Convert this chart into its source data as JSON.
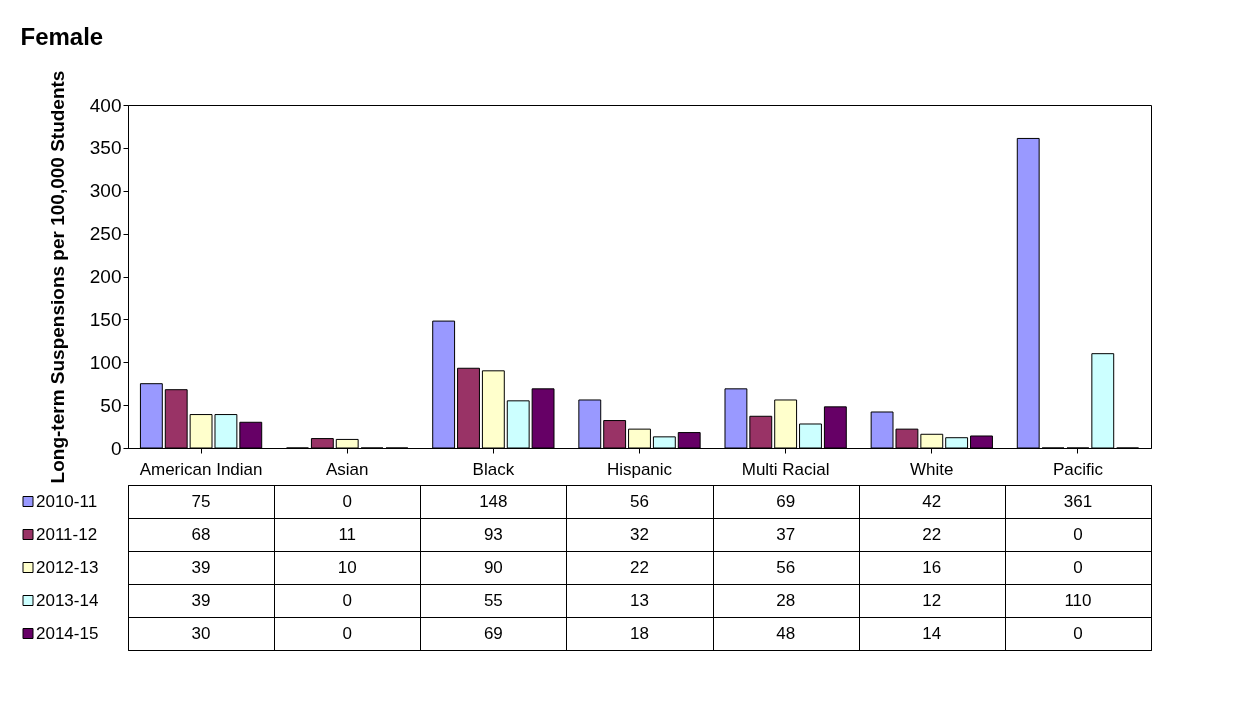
{
  "chart_data": {
    "type": "bar",
    "title": "Female",
    "ylabel": "Long-term Suspensions per 100,000 Students",
    "categories": [
      "American Indian",
      "Asian",
      "Black",
      "Hispanic",
      "Multi Racial",
      "White",
      "Pacific"
    ],
    "series": [
      {
        "name": "2010-11",
        "color": "#9999ff",
        "values": [
          75,
          0,
          148,
          56,
          69,
          42,
          361
        ]
      },
      {
        "name": "2011-12",
        "color": "#993366",
        "values": [
          68,
          11,
          93,
          32,
          37,
          22,
          0
        ]
      },
      {
        "name": "2012-13",
        "color": "#ffffcc",
        "values": [
          39,
          10,
          90,
          22,
          56,
          16,
          0
        ]
      },
      {
        "name": "2013-14",
        "color": "#ccffff",
        "values": [
          39,
          0,
          55,
          13,
          28,
          12,
          110
        ]
      },
      {
        "name": "2014-15",
        "color": "#660066",
        "values": [
          30,
          0,
          69,
          18,
          48,
          14,
          0
        ]
      }
    ],
    "ylim": [
      0,
      400
    ],
    "yticks": [
      0,
      50,
      100,
      150,
      200,
      250,
      300,
      350,
      400
    ],
    "data_labels": true,
    "legend": "bottom left"
  }
}
